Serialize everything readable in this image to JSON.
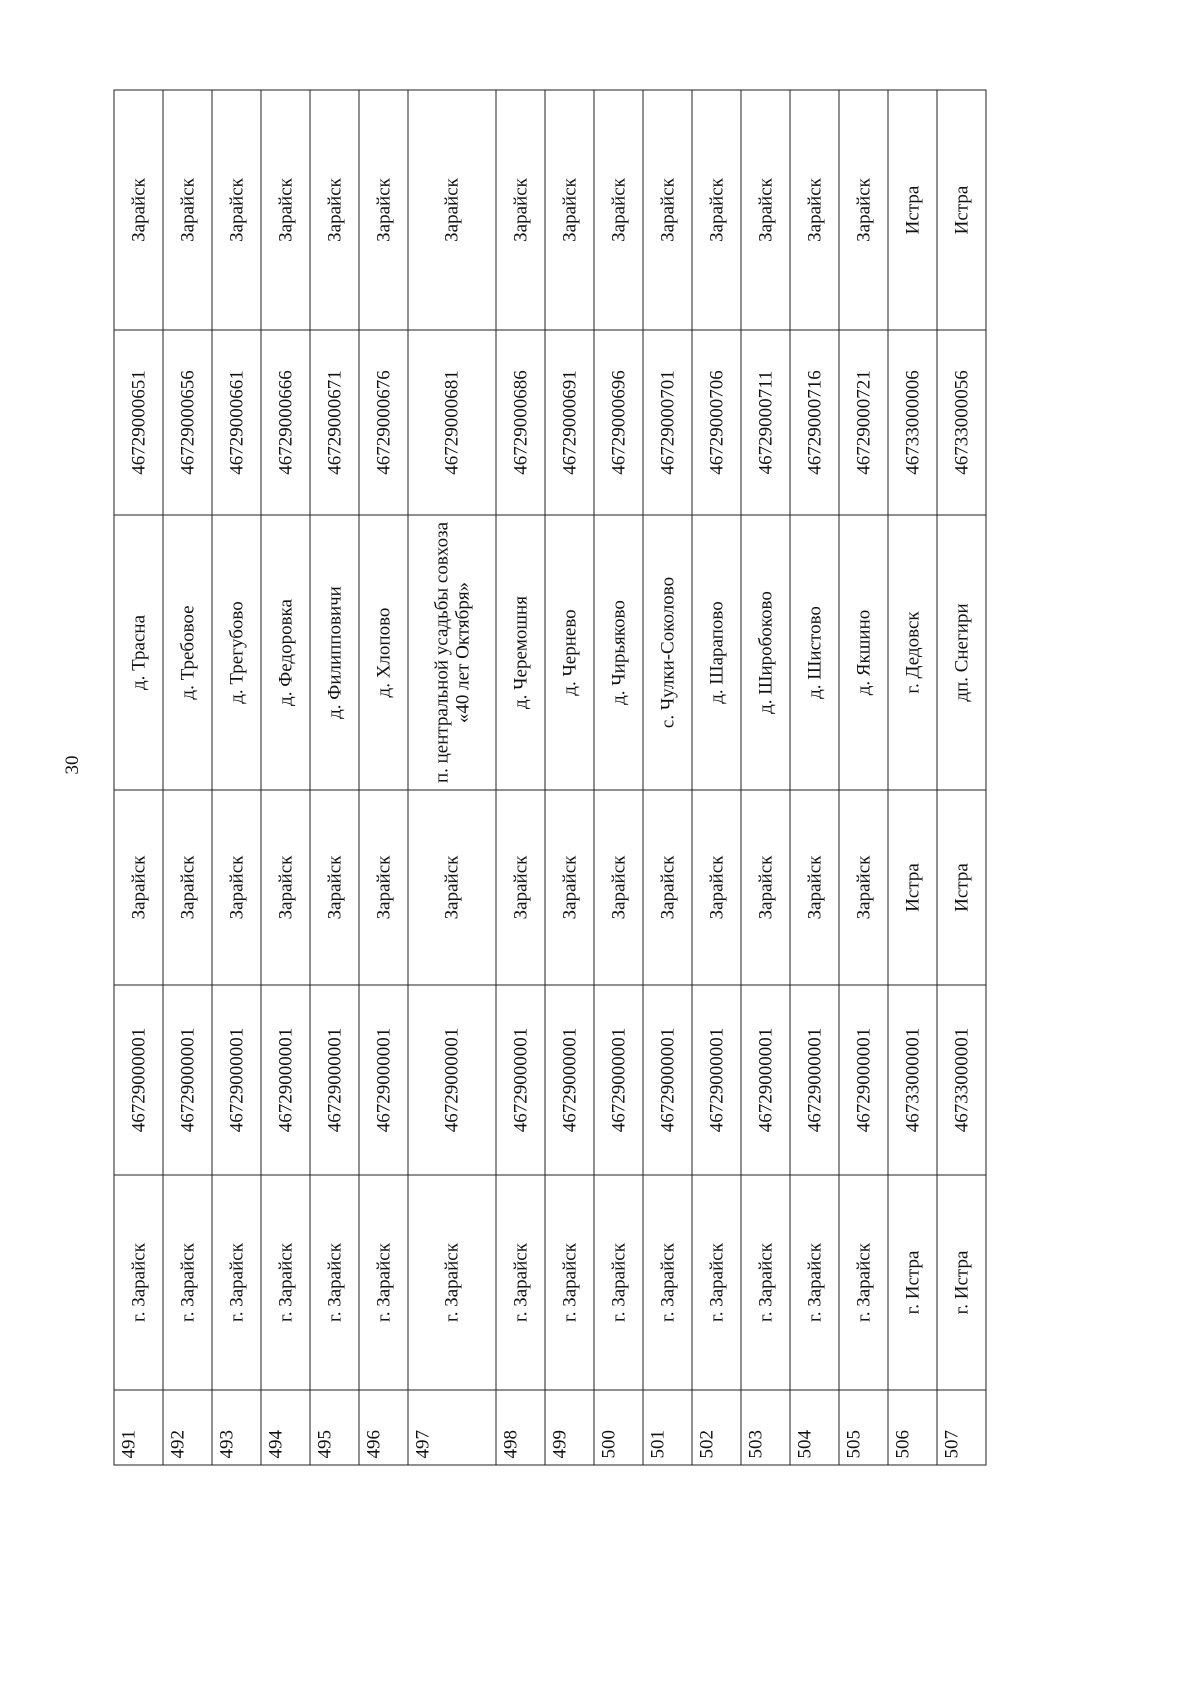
{
  "page_number": "30",
  "rows": [
    [
      "491",
      "г. Зарайск",
      "46729000001",
      "Зарайск",
      "д. Трасна",
      "46729000651",
      "Зарайск"
    ],
    [
      "492",
      "г. Зарайск",
      "46729000001",
      "Зарайск",
      "д. Требовое",
      "46729000656",
      "Зарайск"
    ],
    [
      "493",
      "г. Зарайск",
      "46729000001",
      "Зарайск",
      "д. Трегубово",
      "46729000661",
      "Зарайск"
    ],
    [
      "494",
      "г. Зарайск",
      "46729000001",
      "Зарайск",
      "д. Федоровка",
      "46729000666",
      "Зарайск"
    ],
    [
      "495",
      "г. Зарайск",
      "46729000001",
      "Зарайск",
      "д. Филипповичи",
      "46729000671",
      "Зарайск"
    ],
    [
      "496",
      "г. Зарайск",
      "46729000001",
      "Зарайск",
      "д. Хлопово",
      "46729000676",
      "Зарайск"
    ],
    [
      "497",
      "г. Зарайск",
      "46729000001",
      "Зарайск",
      "п. центральной усадьбы совхоза «40 лет Октября»",
      "46729000681",
      "Зарайск"
    ],
    [
      "498",
      "г. Зарайск",
      "46729000001",
      "Зарайск",
      "д. Черемошня",
      "46729000686",
      "Зарайск"
    ],
    [
      "499",
      "г. Зарайск",
      "46729000001",
      "Зарайск",
      "д. Чернево",
      "46729000691",
      "Зарайск"
    ],
    [
      "500",
      "г. Зарайск",
      "46729000001",
      "Зарайск",
      "д. Чирьяково",
      "46729000696",
      "Зарайск"
    ],
    [
      "501",
      "г. Зарайск",
      "46729000001",
      "Зарайск",
      "с. Чулки-Соколово",
      "46729000701",
      "Зарайск"
    ],
    [
      "502",
      "г. Зарайск",
      "46729000001",
      "Зарайск",
      "д. Шарапово",
      "46729000706",
      "Зарайск"
    ],
    [
      "503",
      "г. Зарайск",
      "46729000001",
      "Зарайск",
      "д. Широбоково",
      "46729000711",
      "Зарайск"
    ],
    [
      "504",
      "г. Зарайск",
      "46729000001",
      "Зарайск",
      "д. Шистово",
      "46729000716",
      "Зарайск"
    ],
    [
      "505",
      "г. Зарайск",
      "46729000001",
      "Зарайск",
      "д. Якшино",
      "46729000721",
      "Зарайск"
    ],
    [
      "506",
      "г. Истра",
      "46733000001",
      "Истра",
      "г. Дедовск",
      "46733000006",
      "Истра"
    ],
    [
      "507",
      "г. Истра",
      "46733000001",
      "Истра",
      "дп. Снегири",
      "46733000056",
      "Истра"
    ]
  ]
}
